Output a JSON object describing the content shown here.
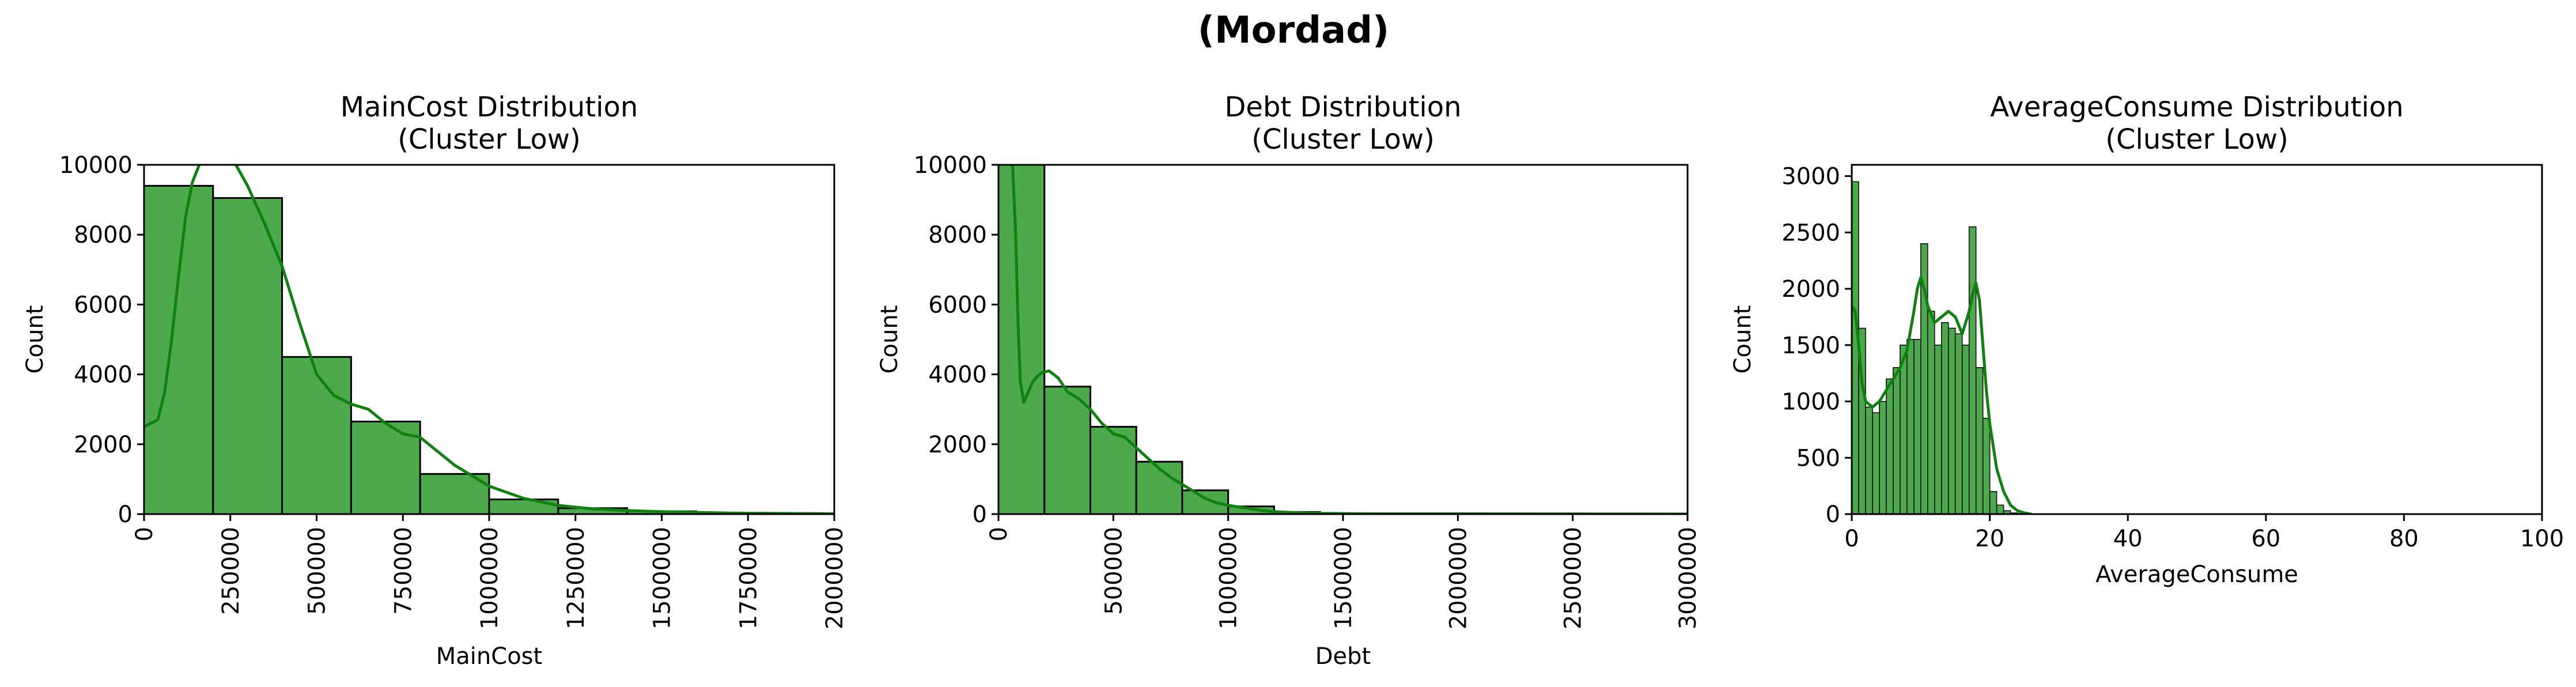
{
  "figure": {
    "suptitle": "(Mordad)"
  },
  "colors": {
    "bar_fill": "#4caa4c",
    "bar_edge": "#000000",
    "kde_line": "#108010"
  },
  "chart_data": [
    {
      "type": "bar",
      "title_lines": [
        "MainCost Distribution",
        "(Cluster Low)"
      ],
      "xlabel": "MainCost",
      "ylabel": "Count",
      "xlim": [
        0,
        2000000
      ],
      "ylim": [
        0,
        10000
      ],
      "xticks": [
        0,
        250000,
        500000,
        750000,
        1000000,
        1250000,
        1500000,
        1750000,
        2000000
      ],
      "xtick_labels": [
        "0",
        "250000",
        "500000",
        "750000",
        "1000000",
        "1250000",
        "1500000",
        "1750000",
        "2000000"
      ],
      "xtick_rotation": 90,
      "yticks": [
        0,
        2000,
        4000,
        6000,
        8000,
        10000
      ],
      "ytick_labels": [
        "0",
        "2000",
        "4000",
        "6000",
        "8000",
        "10000"
      ],
      "bin_edges": [
        0,
        200000,
        400000,
        600000,
        800000,
        1000000,
        1200000,
        1400000,
        1600000,
        1800000,
        2000000
      ],
      "values": [
        9400,
        9050,
        4500,
        2650,
        1150,
        420,
        170,
        80,
        40,
        20
      ],
      "kde": {
        "x": [
          0,
          20000,
          40000,
          60000,
          80000,
          100000,
          120000,
          140000,
          160000,
          180000,
          190000,
          255000,
          300000,
          350000,
          400000,
          450000,
          500000,
          550000,
          600000,
          650000,
          700000,
          750000,
          800000,
          850000,
          900000,
          950000,
          1000000,
          1100000,
          1200000,
          1300000,
          1400000,
          1500000,
          1700000,
          2000000
        ],
        "y": [
          2500,
          2600,
          2700,
          3500,
          5000,
          6800,
          8500,
          9500,
          10000,
          10200,
          10200,
          10200,
          9400,
          8300,
          7100,
          5500,
          4000,
          3400,
          3150,
          3000,
          2600,
          2300,
          2200,
          1800,
          1400,
          1100,
          800,
          450,
          250,
          150,
          100,
          70,
          30,
          10
        ]
      }
    },
    {
      "type": "bar",
      "title_lines": [
        "Debt Distribution",
        "(Cluster Low)"
      ],
      "xlabel": "Debt",
      "ylabel": "Count",
      "xlim": [
        0,
        3000000
      ],
      "ylim": [
        0,
        10000
      ],
      "xticks": [
        0,
        500000,
        1000000,
        1500000,
        2000000,
        2500000,
        3000000
      ],
      "xtick_labels": [
        "0",
        "500000",
        "1000000",
        "1500000",
        "2000000",
        "2500000",
        "3000000"
      ],
      "xtick_rotation": 90,
      "yticks": [
        0,
        2000,
        4000,
        6000,
        8000,
        10000
      ],
      "ytick_labels": [
        "0",
        "2000",
        "4000",
        "6000",
        "8000",
        "10000"
      ],
      "bin_edges": [
        0,
        200000,
        400000,
        600000,
        800000,
        1000000,
        1200000,
        1400000,
        1600000,
        1800000,
        2000000,
        2200000,
        2400000,
        2600000,
        2800000,
        3000000
      ],
      "values": [
        10200,
        3650,
        2500,
        1500,
        680,
        220,
        60,
        25,
        15,
        10,
        8,
        6,
        4,
        2,
        1
      ],
      "kde": {
        "x": [
          0,
          15000,
          30000,
          45000,
          60000,
          75000,
          85000,
          95000,
          110000,
          130000,
          150000,
          170000,
          190000,
          220000,
          260000,
          300000,
          350000,
          400000,
          450000,
          500000,
          550000,
          600000,
          650000,
          700000,
          750000,
          800000,
          850000,
          900000,
          950000,
          1000000,
          1050000,
          1100000,
          1150000,
          1200000,
          1300000,
          1400000,
          1600000,
          3000000
        ],
        "y": [
          10200,
          10200,
          10200,
          10200,
          10200,
          8000,
          5500,
          3800,
          3200,
          3500,
          3800,
          3950,
          4050,
          4100,
          3900,
          3500,
          3300,
          3000,
          2600,
          2300,
          2200,
          1900,
          1600,
          1300,
          1050,
          850,
          650,
          450,
          320,
          250,
          200,
          150,
          100,
          70,
          40,
          20,
          10,
          2
        ]
      }
    },
    {
      "type": "bar",
      "title_lines": [
        "AverageConsume Distribution",
        "(Cluster Low)"
      ],
      "xlabel": "AverageConsume",
      "ylabel": "Count",
      "xlim": [
        0,
        100
      ],
      "ylim": [
        0,
        3100
      ],
      "xticks": [
        0,
        20,
        40,
        60,
        80,
        100
      ],
      "xtick_labels": [
        "0",
        "20",
        "40",
        "60",
        "80",
        "100"
      ],
      "xtick_rotation": 0,
      "yticks": [
        0,
        500,
        1000,
        1500,
        2000,
        2500,
        3000
      ],
      "ytick_labels": [
        "0",
        "500",
        "1000",
        "1500",
        "2000",
        "2500",
        "3000"
      ],
      "bin_edges": [
        0,
        1,
        2,
        3,
        4,
        5,
        6,
        7,
        8,
        9,
        10,
        11,
        12,
        13,
        14,
        15,
        16,
        17,
        18,
        19,
        20,
        21,
        22,
        23,
        24,
        25
      ],
      "values": [
        2950,
        1650,
        950,
        900,
        1000,
        1200,
        1300,
        1500,
        1550,
        1550,
        2400,
        1800,
        1500,
        1700,
        1650,
        1600,
        1500,
        2550,
        1300,
        850,
        200,
        80,
        30,
        10,
        5
      ],
      "kde": {
        "x": [
          0,
          0.5,
          1,
          1.5,
          2,
          3,
          4,
          5,
          6,
          7,
          8,
          9,
          9.5,
          10,
          10.5,
          11,
          12,
          13,
          14,
          15,
          16,
          17,
          17.5,
          18,
          18.5,
          19,
          19.5,
          20,
          21,
          22,
          23,
          24,
          25,
          26
        ],
        "y": [
          1850,
          1800,
          1500,
          1150,
          1000,
          950,
          1000,
          1100,
          1200,
          1300,
          1450,
          1800,
          2000,
          2100,
          2000,
          1850,
          1700,
          1750,
          1800,
          1750,
          1600,
          1800,
          1950,
          2050,
          1900,
          1500,
          1100,
          800,
          400,
          200,
          80,
          30,
          10,
          0
        ]
      }
    }
  ]
}
